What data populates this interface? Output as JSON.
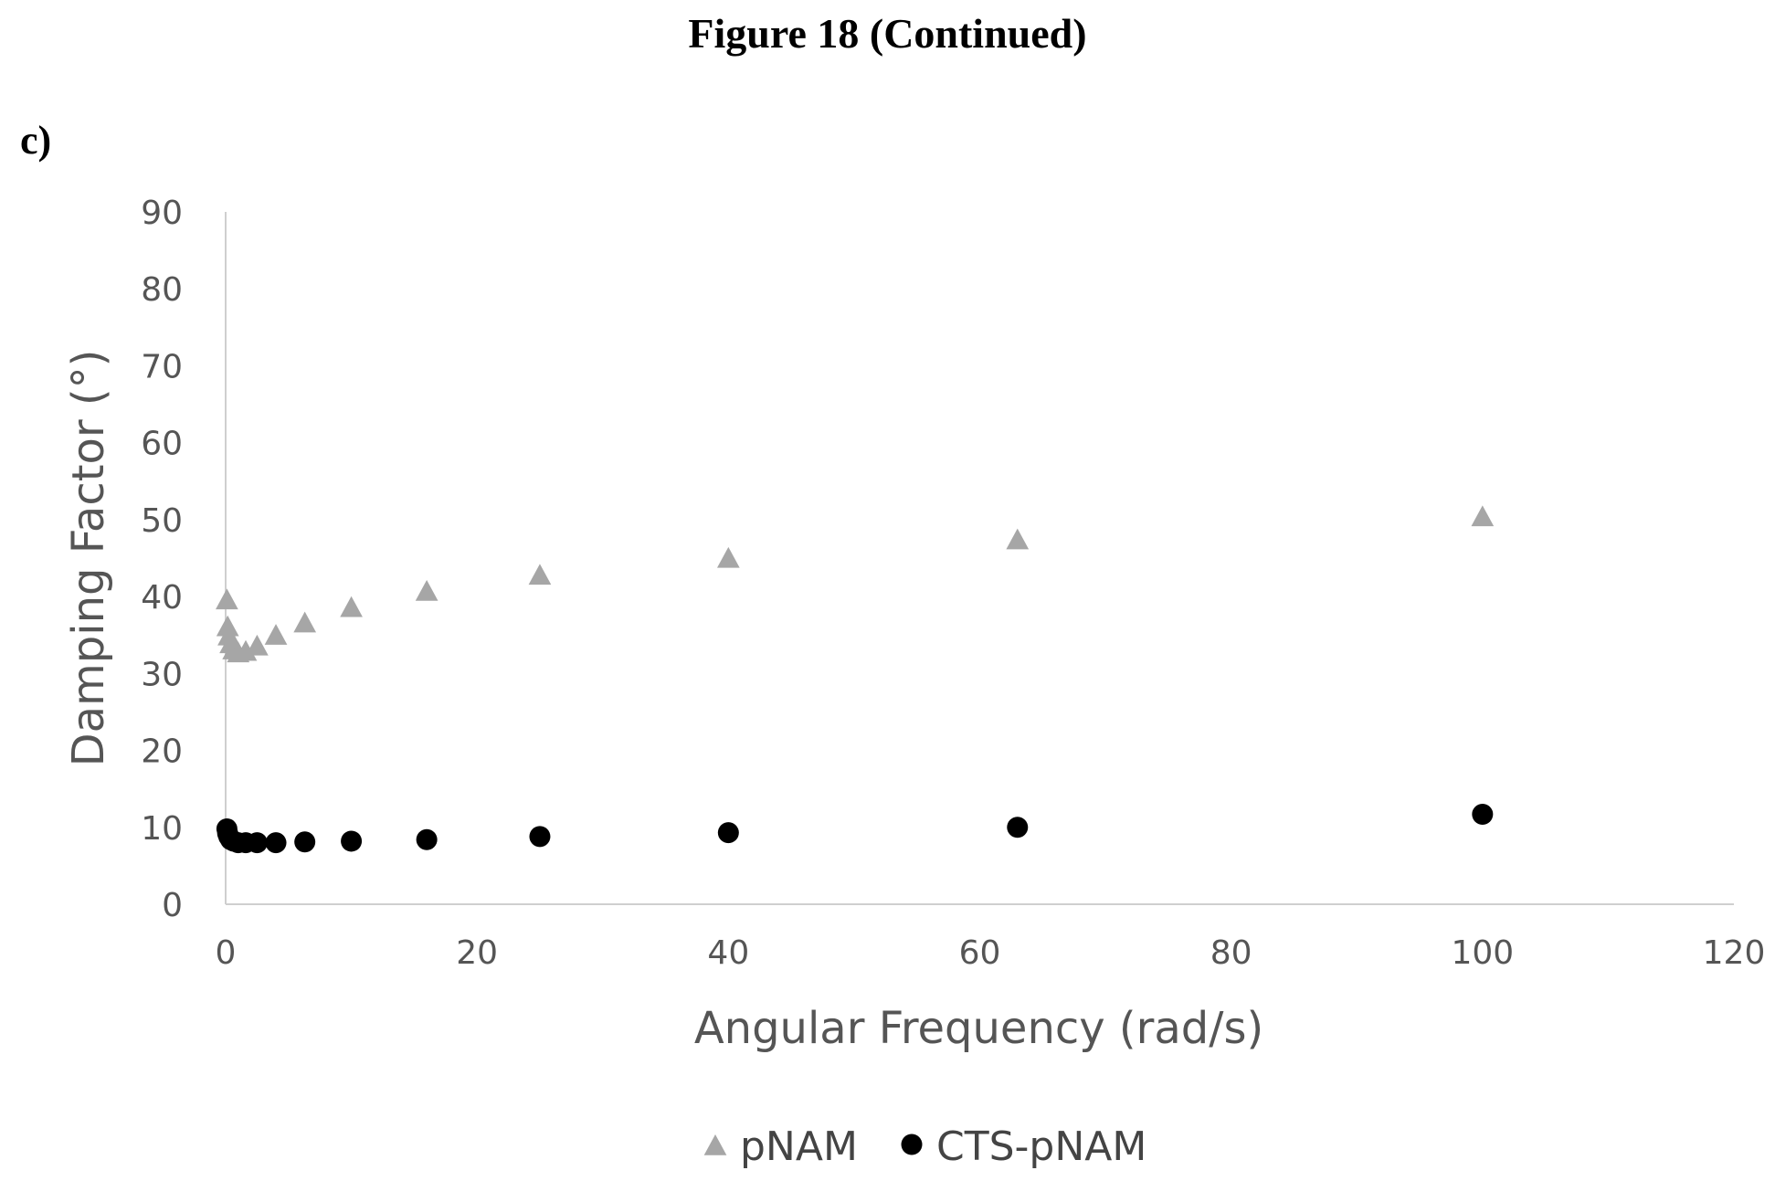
{
  "figure": {
    "title": "Figure 18 (Continued)",
    "panel_label": "c)"
  },
  "chart_data": {
    "type": "scatter",
    "xlabel": "Angular Frequency (rad/s)",
    "ylabel": "Damping Factor (°)",
    "xlim": [
      0,
      120
    ],
    "ylim": [
      0,
      90
    ],
    "xticks": [
      0,
      20,
      40,
      60,
      80,
      100,
      120
    ],
    "yticks": [
      0,
      10,
      20,
      30,
      40,
      50,
      60,
      70,
      80,
      90
    ],
    "grid": false,
    "legend_position": "bottom",
    "series": [
      {
        "name": "pNAM",
        "marker": "triangle",
        "color": "#a6a6a6",
        "points": [
          {
            "x": 0.1,
            "y": 39.5
          },
          {
            "x": 0.16,
            "y": 36.0
          },
          {
            "x": 0.25,
            "y": 34.8
          },
          {
            "x": 0.4,
            "y": 33.8
          },
          {
            "x": 0.63,
            "y": 33.0
          },
          {
            "x": 1.0,
            "y": 32.6
          },
          {
            "x": 1.6,
            "y": 32.8
          },
          {
            "x": 2.5,
            "y": 33.5
          },
          {
            "x": 4.0,
            "y": 34.9
          },
          {
            "x": 6.3,
            "y": 36.5
          },
          {
            "x": 10,
            "y": 38.5
          },
          {
            "x": 16,
            "y": 40.6
          },
          {
            "x": 25,
            "y": 42.7
          },
          {
            "x": 40,
            "y": 44.9
          },
          {
            "x": 63,
            "y": 47.3
          },
          {
            "x": 100,
            "y": 50.3
          }
        ]
      },
      {
        "name": "CTS-pNAM",
        "marker": "circle",
        "color": "#000000",
        "points": [
          {
            "x": 0.1,
            "y": 9.8
          },
          {
            "x": 0.16,
            "y": 9.2
          },
          {
            "x": 0.25,
            "y": 8.8
          },
          {
            "x": 0.4,
            "y": 8.4
          },
          {
            "x": 0.63,
            "y": 8.2
          },
          {
            "x": 1.0,
            "y": 8.0
          },
          {
            "x": 1.6,
            "y": 8.0
          },
          {
            "x": 2.5,
            "y": 8.0
          },
          {
            "x": 4.0,
            "y": 8.0
          },
          {
            "x": 6.3,
            "y": 8.1
          },
          {
            "x": 10,
            "y": 8.2
          },
          {
            "x": 16,
            "y": 8.4
          },
          {
            "x": 25,
            "y": 8.8
          },
          {
            "x": 40,
            "y": 9.3
          },
          {
            "x": 63,
            "y": 10.0
          },
          {
            "x": 100,
            "y": 11.7
          }
        ]
      }
    ]
  }
}
